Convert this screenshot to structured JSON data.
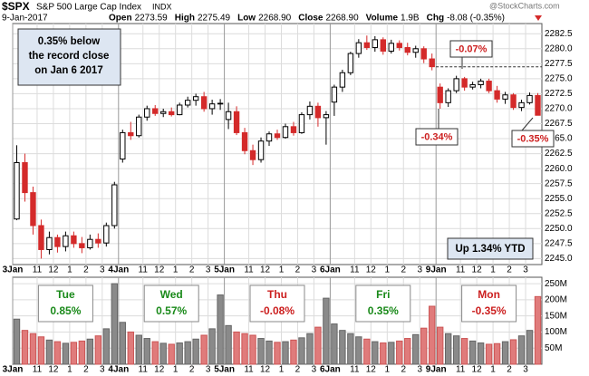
{
  "chart_data": {
    "type": "candlestick",
    "header": {
      "symbol": "$SPX",
      "name": "S&P 500 Large Cap Index",
      "exchange": "INDX",
      "date": "9-Jan-2017",
      "stats": [
        {
          "label": "Open",
          "value": "2273.59"
        },
        {
          "label": "High",
          "value": "2275.49"
        },
        {
          "label": "Low",
          "value": "2268.90"
        },
        {
          "label": "Close",
          "value": "2268.90"
        },
        {
          "label": "Volume",
          "value": "1.9B"
        },
        {
          "label": "Chg",
          "value": "-8.08 (-0.35%)"
        }
      ],
      "source": "@StockCharts.com"
    },
    "up_color": "#000000",
    "down_color": "#d42a2a",
    "candles": [
      [
        2251.6,
        2263.9,
        2251.4,
        2261.0
      ],
      [
        2261.0,
        2262.5,
        2254.5,
        2256.0
      ],
      [
        2256.0,
        2257.0,
        2249.0,
        2250.5
      ],
      [
        2250.5,
        2251.5,
        2245.0,
        2246.5
      ],
      [
        2246.5,
        2249.5,
        2245.7,
        2248.5
      ],
      [
        2248.5,
        2249.0,
        2246.0,
        2247.0
      ],
      [
        2247.0,
        2249.5,
        2246.2,
        2248.8
      ],
      [
        2248.8,
        2249.5,
        2246.8,
        2247.5
      ],
      [
        2247.5,
        2248.6,
        2245.9,
        2246.8
      ],
      [
        2246.8,
        2249.0,
        2246.5,
        2248.2
      ],
      [
        2248.2,
        2249.2,
        2246.8,
        2247.6
      ],
      [
        2247.6,
        2251.0,
        2247.0,
        2250.5
      ],
      [
        2250.5,
        2257.8,
        2250.0,
        2257.3
      ],
      [
        2261.6,
        2266.5,
        2261.0,
        2266.0
      ],
      [
        2266.0,
        2267.8,
        2264.8,
        2265.5
      ],
      [
        2265.5,
        2269.0,
        2265.2,
        2268.6
      ],
      [
        2268.6,
        2270.5,
        2268.0,
        2270.0
      ],
      [
        2270.0,
        2270.6,
        2268.8,
        2269.2
      ],
      [
        2269.2,
        2270.0,
        2268.6,
        2269.5
      ],
      [
        2269.5,
        2270.2,
        2268.7,
        2269.0
      ],
      [
        2269.0,
        2271.0,
        2268.9,
        2270.6
      ],
      [
        2270.6,
        2272.0,
        2270.2,
        2271.4
      ],
      [
        2271.4,
        2272.5,
        2270.5,
        2272.0
      ],
      [
        2272.0,
        2272.8,
        2269.5,
        2270.0
      ],
      [
        2270.0,
        2271.5,
        2269.0,
        2270.8
      ],
      [
        2270.8,
        2271.6,
        2269.8,
        2270.9
      ],
      [
        2268.2,
        2271.0,
        2266.6,
        2269.5
      ],
      [
        2269.5,
        2270.4,
        2265.6,
        2266.0
      ],
      [
        2266.0,
        2266.8,
        2262.4,
        2263.0
      ],
      [
        2263.0,
        2264.0,
        2260.6,
        2261.5
      ],
      [
        2261.5,
        2265.2,
        2261.0,
        2264.6
      ],
      [
        2264.6,
        2266.2,
        2263.8,
        2265.8
      ],
      [
        2265.8,
        2266.5,
        2264.8,
        2265.2
      ],
      [
        2265.2,
        2267.5,
        2265.0,
        2267.0
      ],
      [
        2267.0,
        2267.8,
        2265.5,
        2266.0
      ],
      [
        2266.0,
        2269.4,
        2265.8,
        2269.0
      ],
      [
        2269.0,
        2271.2,
        2268.2,
        2270.4
      ],
      [
        2270.4,
        2271.0,
        2267.0,
        2268.5
      ],
      [
        2268.5,
        2269.6,
        2264.0,
        2269.0
      ],
      [
        2271.1,
        2274.0,
        2268.8,
        2273.6
      ],
      [
        2273.6,
        2276.5,
        2272.8,
        2276.0
      ],
      [
        2276.0,
        2279.5,
        2275.6,
        2279.2
      ],
      [
        2279.2,
        2281.6,
        2278.5,
        2281.0
      ],
      [
        2281.0,
        2282.2,
        2279.8,
        2280.2
      ],
      [
        2280.2,
        2282.1,
        2279.5,
        2281.5
      ],
      [
        2281.5,
        2281.9,
        2279.0,
        2279.6
      ],
      [
        2279.6,
        2281.5,
        2279.2,
        2280.9
      ],
      [
        2280.9,
        2281.4,
        2279.7,
        2280.2
      ],
      [
        2280.2,
        2281.0,
        2278.9,
        2279.4
      ],
      [
        2279.4,
        2280.5,
        2278.5,
        2280.0
      ],
      [
        2280.0,
        2280.4,
        2277.6,
        2278.3
      ],
      [
        2278.3,
        2279.2,
        2276.4,
        2277.0
      ],
      [
        2273.59,
        2274.2,
        2270.0,
        2271.0
      ],
      [
        2271.0,
        2273.4,
        2270.3,
        2273.0
      ],
      [
        2273.0,
        2275.49,
        2272.6,
        2275.0
      ],
      [
        2275.0,
        2275.3,
        2273.0,
        2273.6
      ],
      [
        2273.6,
        2274.5,
        2273.2,
        2274.0
      ],
      [
        2274.0,
        2275.0,
        2273.4,
        2274.6
      ],
      [
        2274.6,
        2275.0,
        2272.6,
        2273.0
      ],
      [
        2273.0,
        2273.8,
        2271.0,
        2271.6
      ],
      [
        2271.6,
        2272.8,
        2270.8,
        2272.3
      ],
      [
        2272.3,
        2272.6,
        2269.8,
        2270.2
      ],
      [
        2270.2,
        2271.5,
        2269.6,
        2271.0
      ],
      [
        2271.0,
        2272.7,
        2270.7,
        2272.2
      ],
      [
        2272.2,
        2272.6,
        2268.9,
        2268.9
      ]
    ],
    "volume": [
      140,
      105,
      95,
      85,
      75,
      70,
      65,
      68,
      72,
      78,
      88,
      110,
      250,
      130,
      100,
      90,
      80,
      70,
      65,
      62,
      66,
      70,
      78,
      90,
      110,
      215,
      120,
      100,
      95,
      90,
      80,
      72,
      68,
      70,
      75,
      82,
      95,
      115,
      205,
      125,
      105,
      95,
      85,
      78,
      70,
      66,
      68,
      72,
      80,
      92,
      112,
      180,
      115,
      95,
      88,
      80,
      72,
      66,
      62,
      64,
      70,
      76,
      88,
      105,
      210
    ],
    "ylim": [
      2244,
      2284.2
    ],
    "yticks": [
      {
        "value": 2245,
        "label": "2245.0"
      },
      {
        "value": 2247.5,
        "label": "2247.5"
      },
      {
        "value": 2250,
        "label": "2250.0"
      },
      {
        "value": 2252.5,
        "label": "2252.5"
      },
      {
        "value": 2255,
        "label": "2255.0"
      },
      {
        "value": 2257.5,
        "label": "2257.5"
      },
      {
        "value": 2260,
        "label": "2260.0"
      },
      {
        "value": 2262.5,
        "label": "2262.5"
      },
      {
        "value": 2265,
        "label": "2265.0"
      },
      {
        "value": 2267.5,
        "label": "2267.5"
      },
      {
        "value": 2270,
        "label": "2270.0"
      },
      {
        "value": 2272.5,
        "label": "2272.5"
      },
      {
        "value": 2275,
        "label": "2275.0"
      },
      {
        "value": 2277.5,
        "label": "2277.5"
      },
      {
        "value": 2280,
        "label": "2280.0"
      },
      {
        "value": 2282.5,
        "label": "2282.5"
      }
    ],
    "vol_ylim": [
      0,
      270
    ],
    "vol_yticks": [
      {
        "value": 50,
        "label": "50M"
      },
      {
        "value": 100,
        "label": "100M"
      },
      {
        "value": 150,
        "label": "150M"
      },
      {
        "value": 200,
        "label": "200M"
      },
      {
        "value": 250,
        "label": "250M"
      }
    ],
    "xlim": [
      0,
      65
    ],
    "xticks": [
      {
        "value": 0,
        "label": "3Jan"
      },
      {
        "value": 3,
        "label": "11"
      },
      {
        "value": 5,
        "label": "12"
      },
      {
        "value": 7,
        "label": "1"
      },
      {
        "value": 9,
        "label": "2"
      },
      {
        "value": 11,
        "label": "3"
      },
      {
        "value": 13,
        "label": "4Jan"
      },
      {
        "value": 16,
        "label": "11"
      },
      {
        "value": 18,
        "label": "12"
      },
      {
        "value": 20,
        "label": "1"
      },
      {
        "value": 22,
        "label": "2"
      },
      {
        "value": 24,
        "label": "3"
      },
      {
        "value": 26,
        "label": "5Jan"
      },
      {
        "value": 29,
        "label": "11"
      },
      {
        "value": 31,
        "label": "12"
      },
      {
        "value": 33,
        "label": "1"
      },
      {
        "value": 35,
        "label": "2"
      },
      {
        "value": 37,
        "label": "3"
      },
      {
        "value": 39,
        "label": "6Jan"
      },
      {
        "value": 42,
        "label": "11"
      },
      {
        "value": 44,
        "label": "12"
      },
      {
        "value": 46,
        "label": "1"
      },
      {
        "value": 48,
        "label": "2"
      },
      {
        "value": 50,
        "label": "3"
      },
      {
        "value": 52,
        "label": "9Jan"
      },
      {
        "value": 55,
        "label": "11"
      },
      {
        "value": 57,
        "label": "12"
      },
      {
        "value": 59,
        "label": "1"
      },
      {
        "value": 61,
        "label": "2"
      },
      {
        "value": 63,
        "label": "3"
      }
    ],
    "record_close": 2276.98,
    "note_lines": [
      "0.35% below",
      "the record close",
      "on Jan 6 2017"
    ],
    "ytd_note": "Up 1.34% YTD",
    "callouts": [
      "-0.07%",
      "-0.34%",
      "-0.35%"
    ],
    "day_changes": [
      {
        "day": "Tue",
        "change": "0.85%",
        "color": "#1a8a1a"
      },
      {
        "day": "Wed",
        "change": "0.57%",
        "color": "#1a8a1a"
      },
      {
        "day": "Thu",
        "change": "-0.08%",
        "color": "#cc1f1f"
      },
      {
        "day": "Fri",
        "change": "0.35%",
        "color": "#1a8a1a"
      },
      {
        "day": "Mon",
        "change": "-0.35%",
        "color": "#cc1f1f"
      }
    ]
  }
}
